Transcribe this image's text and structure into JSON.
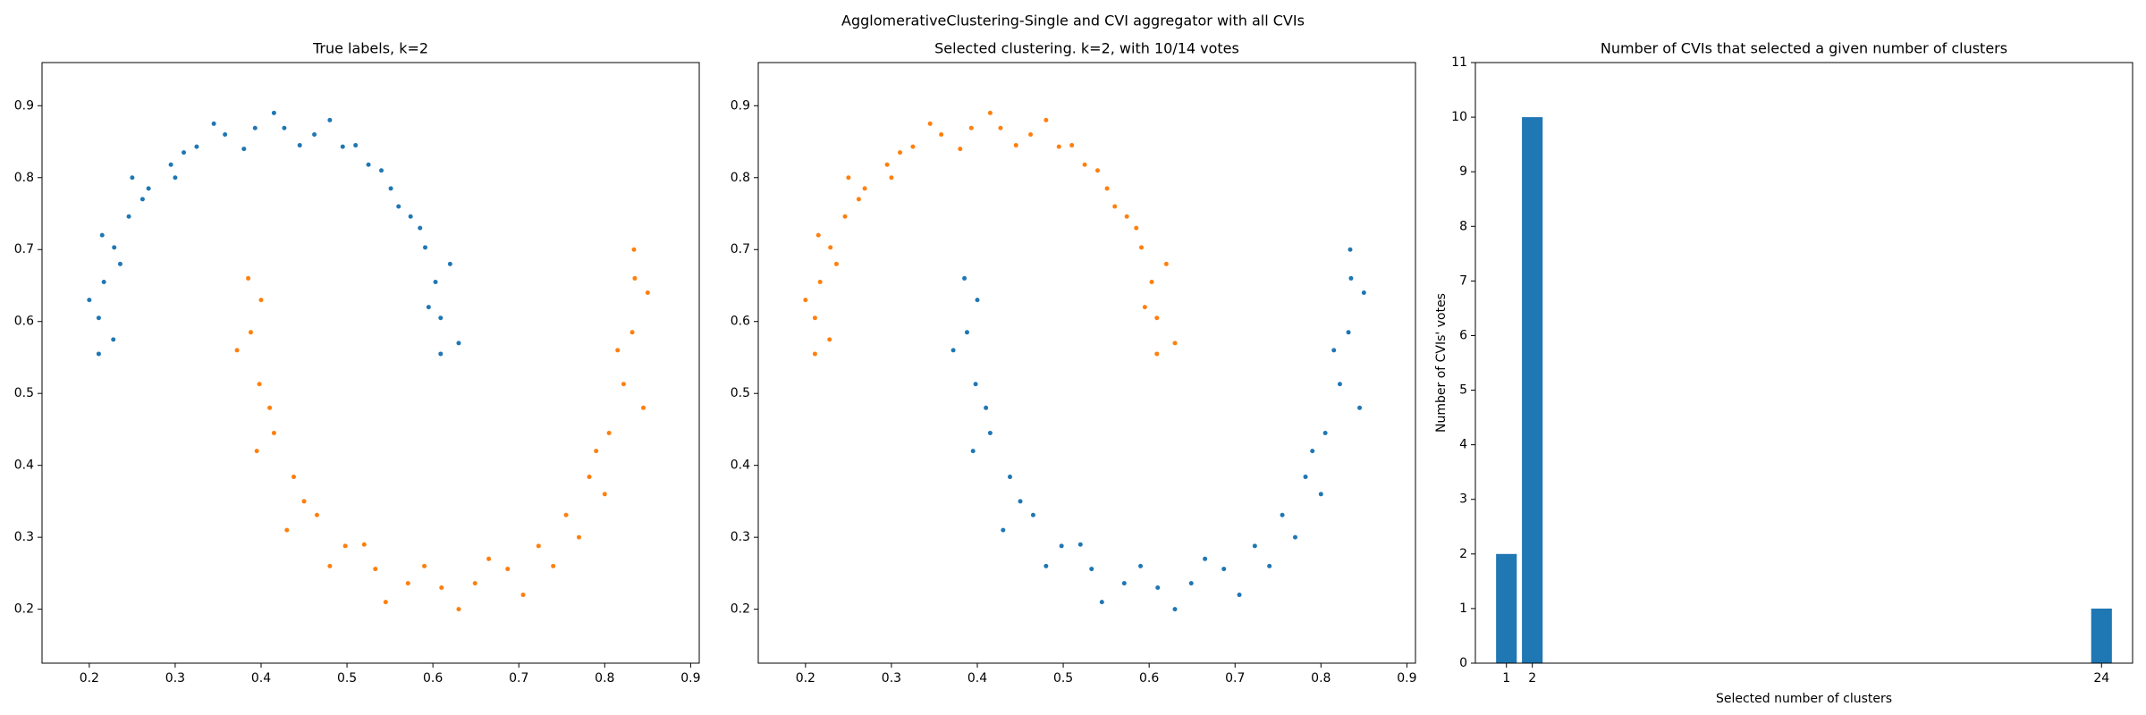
{
  "title": "AgglomerativeClustering-Single and CVI aggregator with all CVIs",
  "chart_data": [
    {
      "type": "scatter",
      "title": "True labels, k=2",
      "xlim": [
        0.145,
        0.91
      ],
      "ylim": [
        0.125,
        0.96
      ],
      "xticks": [
        0.2,
        0.3,
        0.4,
        0.5,
        0.6,
        0.7,
        0.8,
        0.9
      ],
      "yticks": [
        0.2,
        0.3,
        0.4,
        0.5,
        0.6,
        0.7,
        0.8,
        0.9
      ],
      "series": [
        {
          "color": "#1f77b4",
          "x": [
            0.211,
            0.211,
            0.217,
            0.229,
            0.246,
            0.269,
            0.295,
            0.325,
            0.358,
            0.393,
            0.427,
            0.462,
            0.495,
            0.525,
            0.551,
            0.574,
            0.591,
            0.603,
            0.609,
            0.609,
            0.228,
            0.2,
            0.236,
            0.215,
            0.262,
            0.25,
            0.31,
            0.3,
            0.345,
            0.38,
            0.415,
            0.445,
            0.48,
            0.51,
            0.54,
            0.56,
            0.585,
            0.62,
            0.595,
            0.63
          ],
          "y": [
            0.555,
            0.605,
            0.655,
            0.703,
            0.746,
            0.785,
            0.818,
            0.843,
            0.86,
            0.869,
            0.869,
            0.86,
            0.843,
            0.818,
            0.785,
            0.746,
            0.703,
            0.655,
            0.605,
            0.555,
            0.575,
            0.63,
            0.68,
            0.72,
            0.77,
            0.8,
            0.835,
            0.8,
            0.875,
            0.84,
            0.89,
            0.845,
            0.88,
            0.845,
            0.81,
            0.76,
            0.73,
            0.68,
            0.62,
            0.57
          ]
        },
        {
          "color": "#ff7f0e",
          "x": [
            0.385,
            0.388,
            0.398,
            0.415,
            0.438,
            0.465,
            0.498,
            0.533,
            0.571,
            0.61,
            0.649,
            0.687,
            0.723,
            0.755,
            0.782,
            0.805,
            0.822,
            0.832,
            0.835,
            0.834,
            0.4,
            0.372,
            0.41,
            0.395,
            0.45,
            0.43,
            0.48,
            0.52,
            0.545,
            0.59,
            0.63,
            0.665,
            0.705,
            0.74,
            0.77,
            0.8,
            0.79,
            0.845,
            0.815,
            0.85
          ],
          "y": [
            0.66,
            0.585,
            0.513,
            0.445,
            0.384,
            0.331,
            0.288,
            0.256,
            0.236,
            0.23,
            0.236,
            0.256,
            0.288,
            0.331,
            0.384,
            0.445,
            0.513,
            0.585,
            0.66,
            0.7,
            0.63,
            0.56,
            0.48,
            0.42,
            0.35,
            0.31,
            0.26,
            0.29,
            0.21,
            0.26,
            0.2,
            0.27,
            0.22,
            0.26,
            0.3,
            0.36,
            0.42,
            0.48,
            0.56,
            0.64
          ]
        }
      ]
    },
    {
      "type": "scatter",
      "title": "Selected clustering. k=2, with 10/14 votes",
      "xlim": [
        0.145,
        0.91
      ],
      "ylim": [
        0.125,
        0.96
      ],
      "xticks": [
        0.2,
        0.3,
        0.4,
        0.5,
        0.6,
        0.7,
        0.8,
        0.9
      ],
      "yticks": [
        0.2,
        0.3,
        0.4,
        0.5,
        0.6,
        0.7,
        0.8,
        0.9
      ],
      "series": [
        {
          "color": "#ff7f0e",
          "x": [
            0.211,
            0.211,
            0.217,
            0.229,
            0.246,
            0.269,
            0.295,
            0.325,
            0.358,
            0.393,
            0.427,
            0.462,
            0.495,
            0.525,
            0.551,
            0.574,
            0.591,
            0.603,
            0.609,
            0.609,
            0.228,
            0.2,
            0.236,
            0.215,
            0.262,
            0.25,
            0.31,
            0.3,
            0.345,
            0.38,
            0.415,
            0.445,
            0.48,
            0.51,
            0.54,
            0.56,
            0.585,
            0.62,
            0.595,
            0.63
          ],
          "y": [
            0.555,
            0.605,
            0.655,
            0.703,
            0.746,
            0.785,
            0.818,
            0.843,
            0.86,
            0.869,
            0.869,
            0.86,
            0.843,
            0.818,
            0.785,
            0.746,
            0.703,
            0.655,
            0.605,
            0.555,
            0.575,
            0.63,
            0.68,
            0.72,
            0.77,
            0.8,
            0.835,
            0.8,
            0.875,
            0.84,
            0.89,
            0.845,
            0.88,
            0.845,
            0.81,
            0.76,
            0.73,
            0.68,
            0.62,
            0.57
          ]
        },
        {
          "color": "#1f77b4",
          "x": [
            0.385,
            0.388,
            0.398,
            0.415,
            0.438,
            0.465,
            0.498,
            0.533,
            0.571,
            0.61,
            0.649,
            0.687,
            0.723,
            0.755,
            0.782,
            0.805,
            0.822,
            0.832,
            0.835,
            0.834,
            0.4,
            0.372,
            0.41,
            0.395,
            0.45,
            0.43,
            0.48,
            0.52,
            0.545,
            0.59,
            0.63,
            0.665,
            0.705,
            0.74,
            0.77,
            0.8,
            0.79,
            0.845,
            0.815,
            0.85
          ],
          "y": [
            0.66,
            0.585,
            0.513,
            0.445,
            0.384,
            0.331,
            0.288,
            0.256,
            0.236,
            0.23,
            0.236,
            0.256,
            0.288,
            0.331,
            0.384,
            0.445,
            0.513,
            0.585,
            0.66,
            0.7,
            0.63,
            0.56,
            0.48,
            0.42,
            0.35,
            0.31,
            0.26,
            0.29,
            0.21,
            0.26,
            0.2,
            0.27,
            0.22,
            0.26,
            0.3,
            0.36,
            0.42,
            0.48,
            0.56,
            0.64
          ]
        }
      ]
    },
    {
      "type": "bar",
      "title": "Number of CVIs that selected a given number of clusters",
      "x_label": "Selected number of clusters",
      "y_label": "Number of CVIs' votes",
      "x": [
        1,
        2,
        24
      ],
      "values": [
        2,
        10,
        1
      ],
      "bar_width": 0.8,
      "color": "#1f77b4",
      "xlim": [
        -0.2,
        25.2
      ],
      "ylim": [
        0,
        11
      ],
      "xticks": [
        1,
        2,
        24
      ],
      "yticks": [
        0,
        1,
        2,
        3,
        4,
        5,
        6,
        7,
        8,
        9,
        10,
        11
      ]
    }
  ]
}
